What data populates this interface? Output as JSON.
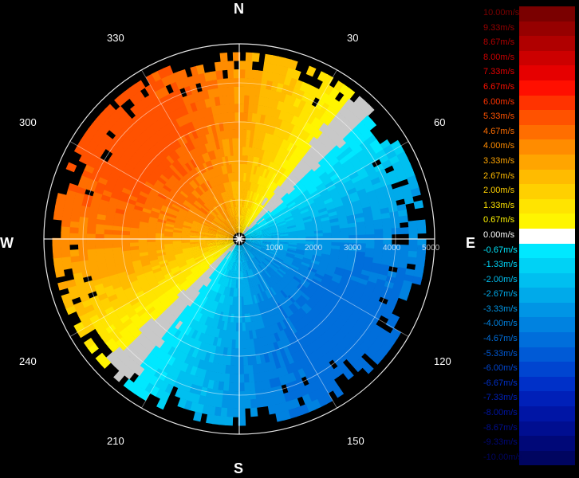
{
  "chart_data": {
    "type": "heatmap",
    "title": "",
    "compass": {
      "north": "N",
      "south": "S",
      "east": "E",
      "west": "W"
    },
    "bearing_labels": [
      "30",
      "60",
      "120",
      "150",
      "210",
      "240",
      "300",
      "330"
    ],
    "range_labels": [
      "1000",
      "2000",
      "3000",
      "4000",
      "5000"
    ],
    "range_max": 5000,
    "field": {
      "description": "radial velocity PPI; positive (warm) toward N/W, negative (blue) toward S/E",
      "max_positive": 5.5,
      "max_negative": -5.0
    },
    "legend": [
      {
        "label": "10.00m/s",
        "color": "#7a0000"
      },
      {
        "label": "9.33m/s",
        "color": "#960000"
      },
      {
        "label": "8.67m/s",
        "color": "#b00000"
      },
      {
        "label": "8.00m/s",
        "color": "#cc0000"
      },
      {
        "label": "7.33m/s",
        "color": "#e60000"
      },
      {
        "label": "6.67m/s",
        "color": "#ff0f00"
      },
      {
        "label": "6.00m/s",
        "color": "#ff3300"
      },
      {
        "label": "5.33m/s",
        "color": "#ff5200"
      },
      {
        "label": "4.67m/s",
        "color": "#ff6e00"
      },
      {
        "label": "4.00m/s",
        "color": "#ff8c00"
      },
      {
        "label": "3.33m/s",
        "color": "#ffa500"
      },
      {
        "label": "2.67m/s",
        "color": "#ffbb00"
      },
      {
        "label": "2.00m/s",
        "color": "#ffd000"
      },
      {
        "label": "1.33m/s",
        "color": "#ffe400"
      },
      {
        "label": "0.67m/s",
        "color": "#fff500"
      },
      {
        "label": "0.00m/s",
        "color": "#ffffff"
      },
      {
        "label": "-0.67m/s",
        "color": "#00e8ff"
      },
      {
        "label": "-1.33m/s",
        "color": "#00d2f5"
      },
      {
        "label": "-2.00m/s",
        "color": "#00bff0"
      },
      {
        "label": "-2.67m/s",
        "color": "#00aaea"
      },
      {
        "label": "-3.33m/s",
        "color": "#0095e5"
      },
      {
        "label": "-4.00m/s",
        "color": "#0082e0"
      },
      {
        "label": "-4.67m/s",
        "color": "#006edb"
      },
      {
        "label": "-5.33m/s",
        "color": "#005ad6"
      },
      {
        "label": "-6.00m/s",
        "color": "#0045d0"
      },
      {
        "label": "-6.67m/s",
        "color": "#0030c8"
      },
      {
        "label": "-7.33m/s",
        "color": "#0020b8"
      },
      {
        "label": "-8.00m/s",
        "color": "#0015a5"
      },
      {
        "label": "-8.67m/s",
        "color": "#000e90"
      },
      {
        "label": "-9.33m/s",
        "color": "#000878"
      },
      {
        "label": "-10.00m/s",
        "color": "#000560"
      }
    ]
  }
}
